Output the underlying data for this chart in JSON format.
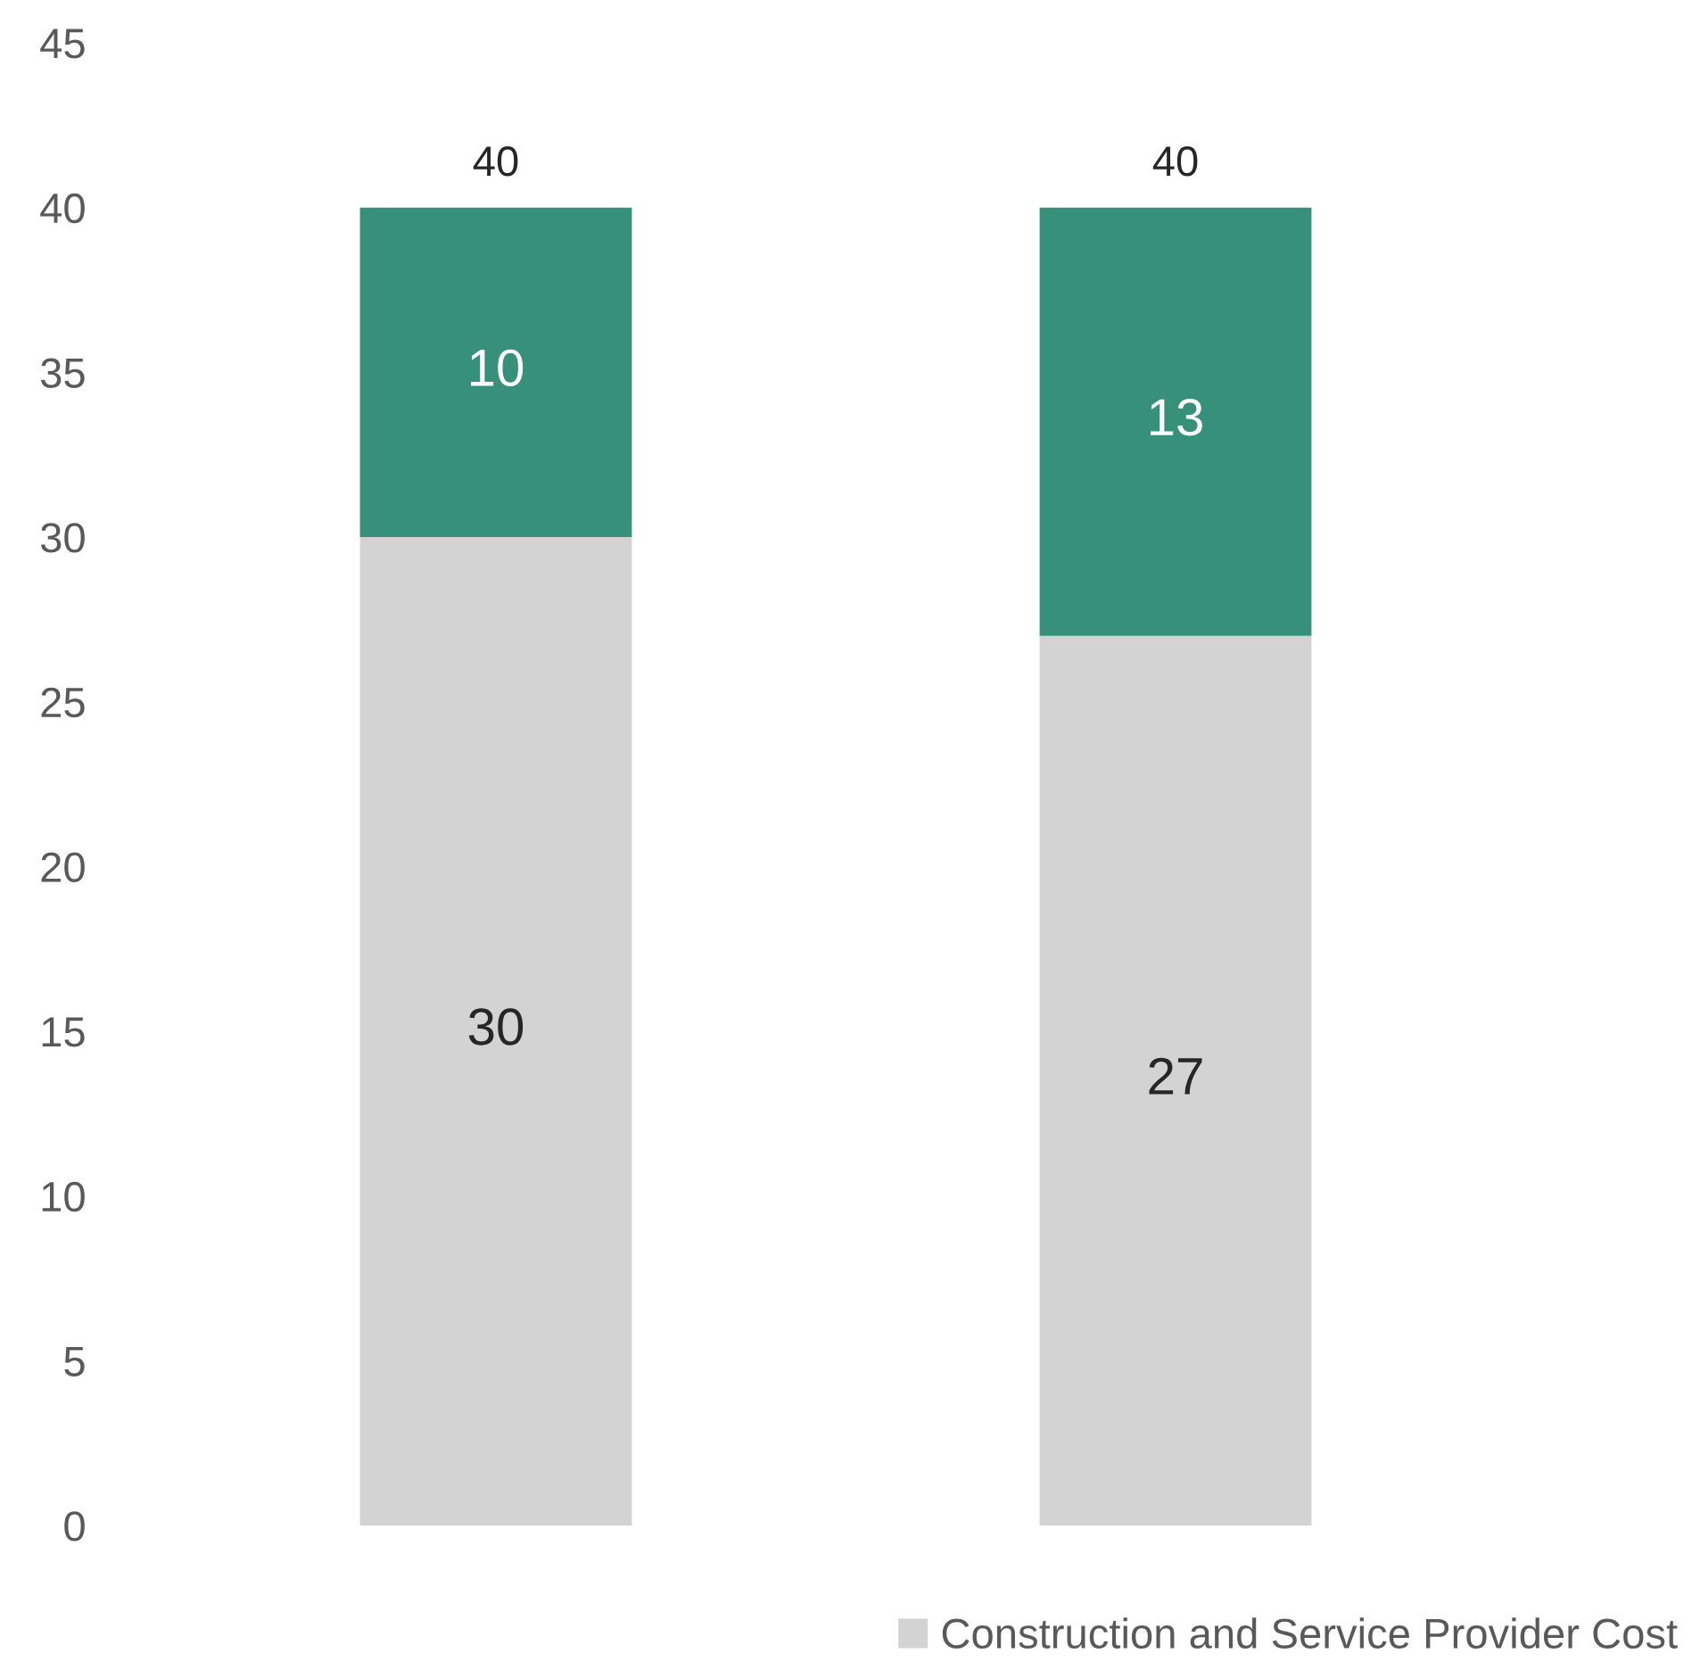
{
  "chart_data": {
    "type": "bar",
    "stacked": true,
    "categories": [
      null,
      null
    ],
    "series": [
      {
        "name": "Construction and Service Provider Cost",
        "color": "#d3d3d3",
        "values": [
          30,
          27
        ]
      },
      {
        "color": "#36907a",
        "values": [
          10,
          13
        ]
      }
    ],
    "ylim": [
      0,
      45
    ],
    "yticks": [
      0,
      5,
      10,
      15,
      20,
      25,
      30,
      35,
      40,
      45
    ],
    "data_labels": true,
    "totals": [
      "40",
      "40"
    ],
    "legend": "bottom right",
    "grid": false
  }
}
